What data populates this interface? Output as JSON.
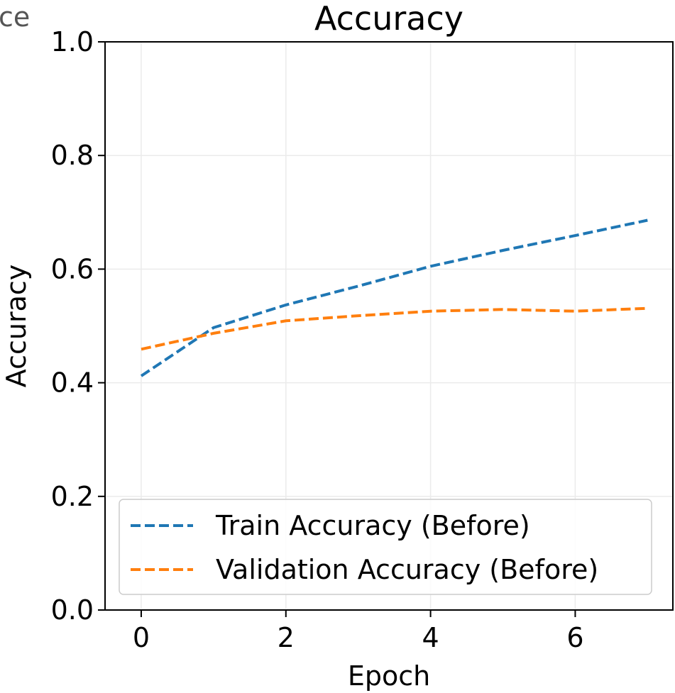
{
  "edge_fragment": "ce",
  "chart_data": {
    "type": "line",
    "title": "Accuracy",
    "xlabel": "Epoch",
    "ylabel": "Accuracy",
    "xlim": [
      -0.5,
      7.35
    ],
    "ylim": [
      0.0,
      1.0
    ],
    "x_ticks": [
      0,
      2,
      4,
      6
    ],
    "y_ticks": [
      0.0,
      0.2,
      0.4,
      0.6,
      0.8,
      1.0
    ],
    "x_tick_labels": [
      "0",
      "2",
      "4",
      "6"
    ],
    "y_tick_labels": [
      "0.0",
      "0.2",
      "0.4",
      "0.6",
      "0.8",
      "1.0"
    ],
    "grid": true,
    "legend_position": "lower-left",
    "x": [
      0,
      1,
      2,
      3,
      4,
      5,
      6,
      7
    ],
    "series": [
      {
        "name": "Train Accuracy (Before)",
        "color": "#1f77b4",
        "line_style": "dashed",
        "values": [
          0.412,
          0.497,
          0.537,
          0.57,
          0.605,
          0.633,
          0.659,
          0.686
        ]
      },
      {
        "name": "Validation Accuracy (Before)",
        "color": "#ff7f0e",
        "line_style": "dashed",
        "values": [
          0.459,
          0.487,
          0.509,
          0.518,
          0.526,
          0.529,
          0.526,
          0.531
        ]
      }
    ]
  }
}
